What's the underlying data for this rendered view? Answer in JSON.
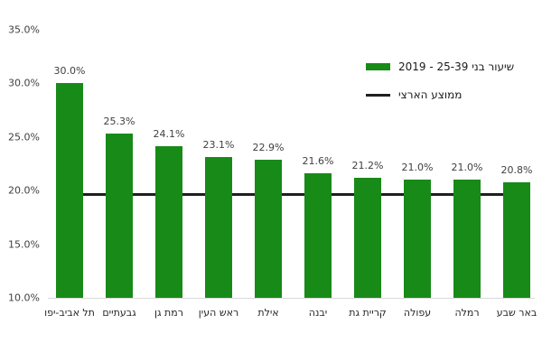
{
  "chart_data": {
    "type": "bar",
    "title": "",
    "categories": [
      "תל אביב-יפו",
      "גבעתיים",
      "רמת גן",
      "ראש העין",
      "אילת",
      "יבנה",
      "קריית גת",
      "עפולה",
      "רמלה",
      "באר שבע"
    ],
    "values": [
      30.0,
      25.3,
      24.1,
      23.1,
      22.9,
      21.6,
      21.2,
      21.0,
      21.0,
      20.8
    ],
    "value_labels": [
      "30.0%",
      "25.3%",
      "24.1%",
      "23.1%",
      "22.9%",
      "21.6%",
      "21.2%",
      "21.0%",
      "21.0%",
      "20.8%"
    ],
    "national_average": 19.7,
    "ylim": [
      10,
      35
    ],
    "y_tick_values": [
      35,
      30,
      25,
      20,
      15,
      10
    ],
    "y_tick_labels": [
      "35.0%",
      "30.0%",
      "25.0%",
      "20.0%",
      "15.0%",
      "10.0%"
    ],
    "grid": false,
    "xlabel": "",
    "ylabel": "",
    "legend_position": "top-right",
    "legend": [
      {
        "label": "שיעור בני 25-39 - 2019",
        "marker": "square",
        "color": "#188a18"
      },
      {
        "label": "ממוצע הארצי",
        "marker": "line",
        "color": "#1f1f1f"
      }
    ],
    "colors": {
      "bar": "#188a18",
      "average_line": "#1f1f1f",
      "axis_line": "#d9d9d9",
      "tick_text": "#404040",
      "category_text": "#262626",
      "background": "#ffffff"
    }
  }
}
